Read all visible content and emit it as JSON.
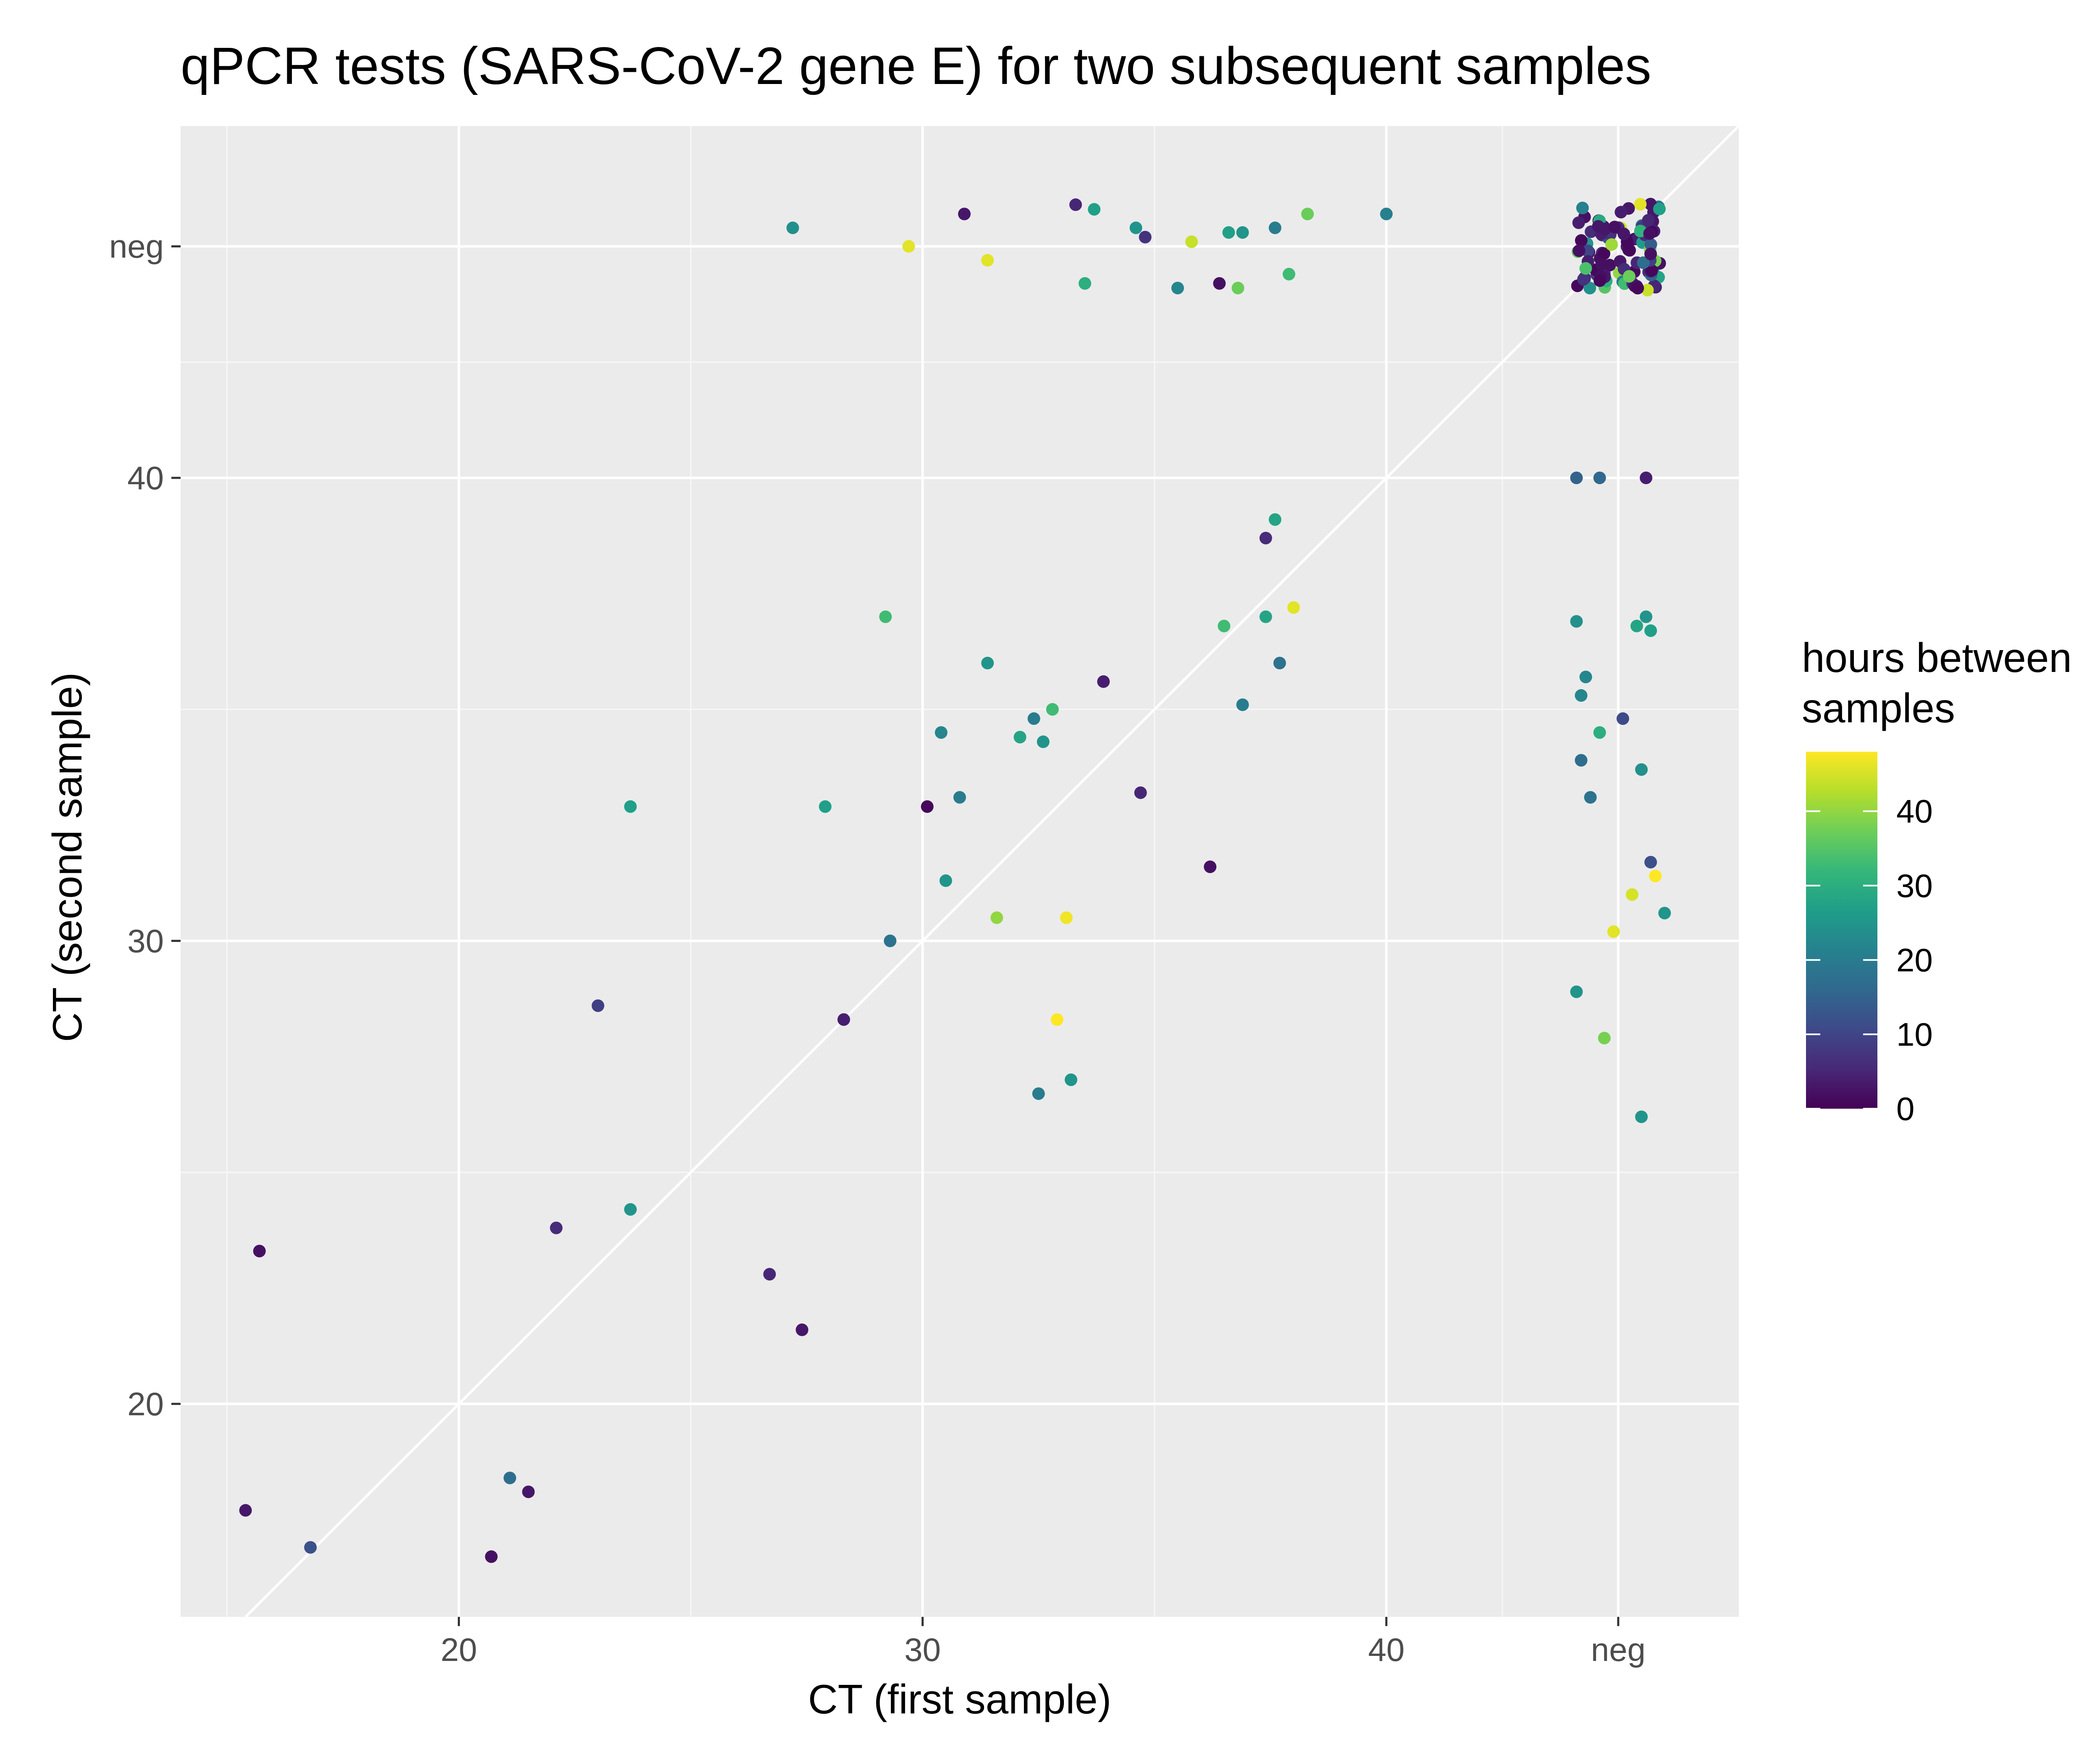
{
  "chart_data": {
    "type": "scatter",
    "title": "qPCR tests (SARS-CoV-2 gene E) for two subsequent samples",
    "xlabel": "CT (first sample)",
    "ylabel": "CT (second sample)",
    "xlim": [
      14.0,
      47.6
    ],
    "ylim": [
      15.4,
      47.6
    ],
    "x_ticks": [
      {
        "value": 20,
        "label": "20"
      },
      {
        "value": 30,
        "label": "30"
      },
      {
        "value": 40,
        "label": "40"
      },
      {
        "value": 45,
        "label": "neg"
      }
    ],
    "y_ticks": [
      {
        "value": 20,
        "label": "20"
      },
      {
        "value": 30,
        "label": "30"
      },
      {
        "value": 40,
        "label": "40"
      },
      {
        "value": 45,
        "label": "neg"
      }
    ],
    "minor_breaks": [
      15,
      25,
      35,
      42.5
    ],
    "identity_line": true,
    "grid": true,
    "legend": {
      "title_lines": [
        "hours between",
        "samples"
      ],
      "position": "right",
      "range": [
        0,
        48
      ],
      "ticks": [
        0,
        10,
        20,
        30,
        40
      ],
      "palette": [
        "#440154",
        "#482878",
        "#3e4989",
        "#31688e",
        "#26828e",
        "#1f9e89",
        "#35b779",
        "#6ece58",
        "#b5de2b",
        "#fde725"
      ]
    },
    "points": [
      {
        "x": 15.4,
        "y": 17.7,
        "h": 3
      },
      {
        "x": 15.7,
        "y": 23.3,
        "h": 2
      },
      {
        "x": 16.8,
        "y": 16.9,
        "h": 12
      },
      {
        "x": 20.7,
        "y": 16.7,
        "h": 2
      },
      {
        "x": 21.1,
        "y": 18.4,
        "h": 17
      },
      {
        "x": 21.5,
        "y": 18.1,
        "h": 3
      },
      {
        "x": 22.1,
        "y": 23.8,
        "h": 6
      },
      {
        "x": 23.0,
        "y": 28.6,
        "h": 9
      },
      {
        "x": 23.7,
        "y": 24.2,
        "h": 25
      },
      {
        "x": 23.7,
        "y": 32.9,
        "h": 27
      },
      {
        "x": 26.7,
        "y": 22.8,
        "h": 5
      },
      {
        "x": 27.4,
        "y": 21.6,
        "h": 3
      },
      {
        "x": 27.9,
        "y": 32.9,
        "h": 27
      },
      {
        "x": 28.3,
        "y": 28.3,
        "h": 4
      },
      {
        "x": 29.2,
        "y": 37.0,
        "h": 33
      },
      {
        "x": 29.3,
        "y": 30.0,
        "h": 18
      },
      {
        "x": 30.1,
        "y": 32.9,
        "h": 1
      },
      {
        "x": 30.4,
        "y": 34.5,
        "h": 22
      },
      {
        "x": 30.5,
        "y": 31.3,
        "h": 25
      },
      {
        "x": 30.8,
        "y": 33.1,
        "h": 20
      },
      {
        "x": 31.4,
        "y": 36.0,
        "h": 25
      },
      {
        "x": 31.6,
        "y": 30.5,
        "h": 40
      },
      {
        "x": 32.1,
        "y": 34.4,
        "h": 28
      },
      {
        "x": 32.4,
        "y": 34.8,
        "h": 20
      },
      {
        "x": 32.5,
        "y": 26.7,
        "h": 20
      },
      {
        "x": 32.6,
        "y": 34.3,
        "h": 25
      },
      {
        "x": 32.8,
        "y": 35.0,
        "h": 33
      },
      {
        "x": 32.9,
        "y": 28.3,
        "h": 48
      },
      {
        "x": 33.1,
        "y": 30.5,
        "h": 47
      },
      {
        "x": 33.2,
        "y": 27.0,
        "h": 25
      },
      {
        "x": 33.9,
        "y": 35.6,
        "h": 4
      },
      {
        "x": 34.7,
        "y": 33.2,
        "h": 5
      },
      {
        "x": 36.2,
        "y": 31.6,
        "h": 2
      },
      {
        "x": 36.5,
        "y": 36.8,
        "h": 33
      },
      {
        "x": 36.9,
        "y": 35.1,
        "h": 20
      },
      {
        "x": 37.4,
        "y": 38.7,
        "h": 6
      },
      {
        "x": 37.4,
        "y": 37.0,
        "h": 28
      },
      {
        "x": 37.6,
        "y": 39.1,
        "h": 28
      },
      {
        "x": 37.7,
        "y": 36.0,
        "h": 18
      },
      {
        "x": 38.0,
        "y": 37.2,
        "h": 46
      },
      {
        "x": 27.2,
        "y": 45.4,
        "h": 24
      },
      {
        "x": 29.7,
        "y": 45.0,
        "h": 46
      },
      {
        "x": 30.9,
        "y": 45.7,
        "h": 3
      },
      {
        "x": 31.4,
        "y": 44.7,
        "h": 46
      },
      {
        "x": 33.3,
        "y": 45.9,
        "h": 5
      },
      {
        "x": 33.5,
        "y": 44.2,
        "h": 30
      },
      {
        "x": 33.7,
        "y": 45.8,
        "h": 27
      },
      {
        "x": 34.6,
        "y": 45.4,
        "h": 25
      },
      {
        "x": 34.8,
        "y": 45.2,
        "h": 7
      },
      {
        "x": 35.5,
        "y": 44.1,
        "h": 22
      },
      {
        "x": 35.8,
        "y": 45.1,
        "h": 44
      },
      {
        "x": 36.4,
        "y": 44.2,
        "h": 2
      },
      {
        "x": 36.6,
        "y": 45.3,
        "h": 27
      },
      {
        "x": 36.8,
        "y": 44.1,
        "h": 37
      },
      {
        "x": 36.9,
        "y": 45.3,
        "h": 25
      },
      {
        "x": 37.6,
        "y": 45.4,
        "h": 20
      },
      {
        "x": 37.9,
        "y": 44.4,
        "h": 33
      },
      {
        "x": 38.3,
        "y": 45.7,
        "h": 37
      },
      {
        "x": 40.0,
        "y": 45.7,
        "h": 21
      },
      {
        "x": 44.1,
        "y": 40.0,
        "h": 15
      },
      {
        "x": 44.6,
        "y": 40.0,
        "h": 16
      },
      {
        "x": 45.6,
        "y": 40.0,
        "h": 4
      },
      {
        "x": 44.1,
        "y": 36.9,
        "h": 24
      },
      {
        "x": 44.2,
        "y": 33.9,
        "h": 17
      },
      {
        "x": 44.2,
        "y": 35.3,
        "h": 22
      },
      {
        "x": 44.3,
        "y": 35.7,
        "h": 22
      },
      {
        "x": 44.4,
        "y": 33.1,
        "h": 18
      },
      {
        "x": 44.6,
        "y": 34.5,
        "h": 30
      },
      {
        "x": 44.1,
        "y": 28.9,
        "h": 25
      },
      {
        "x": 44.7,
        "y": 27.9,
        "h": 38
      },
      {
        "x": 44.9,
        "y": 30.2,
        "h": 46
      },
      {
        "x": 45.1,
        "y": 34.8,
        "h": 11
      },
      {
        "x": 45.3,
        "y": 31.0,
        "h": 45
      },
      {
        "x": 45.4,
        "y": 36.8,
        "h": 28
      },
      {
        "x": 45.5,
        "y": 33.7,
        "h": 24
      },
      {
        "x": 45.6,
        "y": 37.0,
        "h": 25
      },
      {
        "x": 45.7,
        "y": 36.7,
        "h": 27
      },
      {
        "x": 45.7,
        "y": 31.7,
        "h": 12
      },
      {
        "x": 45.8,
        "y": 31.4,
        "h": 48
      },
      {
        "x": 46.0,
        "y": 30.6,
        "h": 25
      },
      {
        "x": 45.5,
        "y": 26.2,
        "h": 25
      }
    ],
    "neg_cluster": {
      "x_center": 45.0,
      "y_center": 45.0,
      "x_spread": 0.9,
      "y_spread": 0.95,
      "hours": [
        2,
        4,
        1,
        5,
        3,
        7,
        2,
        28,
        35,
        3,
        6,
        22,
        1,
        4,
        40,
        2,
        18,
        5,
        3,
        30,
        1,
        8,
        2,
        45,
        4,
        12,
        3,
        25,
        1,
        6,
        38,
        2,
        5,
        20,
        3,
        1,
        33,
        4,
        2,
        15,
        7,
        3,
        42,
        1,
        5,
        26,
        2,
        4,
        10,
        3,
        36,
        1,
        6,
        2,
        19,
        4,
        3,
        46,
        1,
        5,
        29,
        2,
        8,
        3,
        24,
        1,
        4,
        39,
        2,
        6,
        14,
        3,
        1,
        31,
        5,
        2,
        44,
        4,
        3,
        21,
        1,
        7,
        2,
        34,
        5,
        3,
        9,
        1,
        27,
        4,
        2,
        41,
        6,
        3,
        17,
        1,
        5,
        2,
        37,
        4
      ]
    }
  }
}
